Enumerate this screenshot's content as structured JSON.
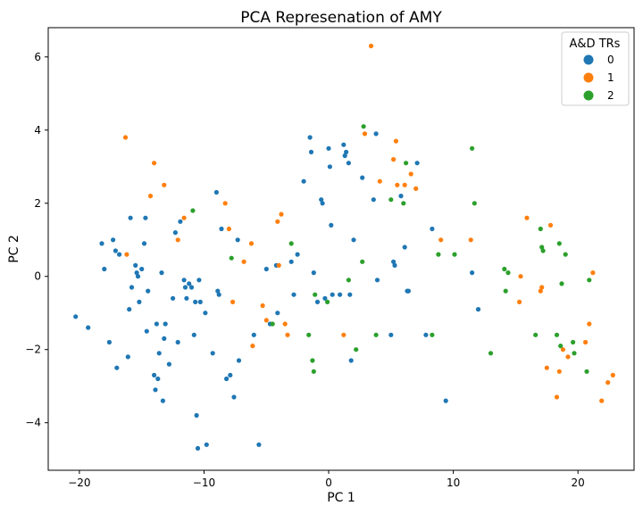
{
  "chart_data": {
    "type": "scatter",
    "title": "PCA Represenation of AMY",
    "xlabel": "PC 1",
    "ylabel": "PC 2",
    "xlim": [
      -22.5,
      24.5
    ],
    "ylim": [
      -5.3,
      6.8
    ],
    "xticks": [
      -20,
      -10,
      0,
      10,
      20
    ],
    "yticks": [
      -4,
      -2,
      0,
      2,
      4,
      6
    ],
    "grid": false,
    "legend": {
      "title": "A&D TRs",
      "placement": "top-right"
    },
    "series": [
      {
        "name": "0",
        "color": "#1f77b4",
        "points": [
          [
            -20.3,
            -1.1
          ],
          [
            -19.3,
            -1.4
          ],
          [
            -18.2,
            0.9
          ],
          [
            -18.0,
            0.2
          ],
          [
            -17.6,
            -1.8
          ],
          [
            -17.3,
            1.0
          ],
          [
            -17.1,
            0.7
          ],
          [
            -17.0,
            -2.5
          ],
          [
            -16.8,
            0.6
          ],
          [
            -16.1,
            -2.2
          ],
          [
            -16.0,
            -0.9
          ],
          [
            -15.9,
            1.6
          ],
          [
            -15.8,
            -0.3
          ],
          [
            -15.5,
            0.3
          ],
          [
            -15.4,
            0.1
          ],
          [
            -15.3,
            0.0
          ],
          [
            -15.2,
            -0.7
          ],
          [
            -15.0,
            0.2
          ],
          [
            -14.8,
            0.9
          ],
          [
            -14.7,
            1.6
          ],
          [
            -14.6,
            -1.5
          ],
          [
            -14.5,
            -0.4
          ],
          [
            -14.0,
            -2.7
          ],
          [
            -13.9,
            -3.1
          ],
          [
            -13.8,
            -1.3
          ],
          [
            -13.7,
            -2.8
          ],
          [
            -13.6,
            -2.1
          ],
          [
            -13.4,
            0.1
          ],
          [
            -13.3,
            -3.4
          ],
          [
            -13.2,
            -1.7
          ],
          [
            -13.1,
            -1.3
          ],
          [
            -12.8,
            -2.4
          ],
          [
            -12.5,
            -0.6
          ],
          [
            -12.3,
            1.2
          ],
          [
            -12.1,
            -1.8
          ],
          [
            -11.9,
            1.5
          ],
          [
            -11.6,
            -0.1
          ],
          [
            -11.5,
            -0.3
          ],
          [
            -11.4,
            -0.6
          ],
          [
            -11.2,
            -0.2
          ],
          [
            -11.0,
            -0.3
          ],
          [
            -10.8,
            -1.6
          ],
          [
            -10.7,
            -0.7
          ],
          [
            -10.6,
            -3.8
          ],
          [
            -10.5,
            -4.7
          ],
          [
            -10.4,
            -0.1
          ],
          [
            -10.3,
            -0.7
          ],
          [
            -9.9,
            -1.0
          ],
          [
            -9.8,
            -4.6
          ],
          [
            -9.3,
            -2.1
          ],
          [
            -9.0,
            2.3
          ],
          [
            -8.9,
            -0.4
          ],
          [
            -8.8,
            -0.5
          ],
          [
            -8.6,
            1.3
          ],
          [
            -8.2,
            -2.8
          ],
          [
            -7.9,
            -2.7
          ],
          [
            -7.6,
            -3.3
          ],
          [
            -7.3,
            1.0
          ],
          [
            -7.2,
            -2.3
          ],
          [
            -6.0,
            -1.6
          ],
          [
            -5.6,
            -4.6
          ],
          [
            -5.0,
            0.2
          ],
          [
            -4.7,
            -1.3
          ],
          [
            -4.2,
            0.3
          ],
          [
            -4.1,
            -1.0
          ],
          [
            -3.0,
            0.4
          ],
          [
            -2.8,
            -0.5
          ],
          [
            -2.5,
            0.6
          ],
          [
            -2.0,
            2.6
          ],
          [
            -1.5,
            3.8
          ],
          [
            -1.4,
            3.4
          ],
          [
            -1.2,
            0.1
          ],
          [
            -0.9,
            -0.7
          ],
          [
            -0.6,
            2.1
          ],
          [
            -0.5,
            2.0
          ],
          [
            -0.3,
            -0.6
          ],
          [
            0.0,
            3.5
          ],
          [
            0.1,
            3.0
          ],
          [
            0.2,
            1.4
          ],
          [
            0.3,
            -0.5
          ],
          [
            0.9,
            -0.5
          ],
          [
            1.2,
            3.6
          ],
          [
            1.3,
            3.3
          ],
          [
            1.4,
            3.4
          ],
          [
            1.6,
            3.1
          ],
          [
            1.7,
            -0.5
          ],
          [
            1.8,
            -2.3
          ],
          [
            2.0,
            1.0
          ],
          [
            2.7,
            2.7
          ],
          [
            3.6,
            2.1
          ],
          [
            3.8,
            3.9
          ],
          [
            3.9,
            -0.1
          ],
          [
            5.0,
            -1.6
          ],
          [
            5.2,
            0.4
          ],
          [
            5.3,
            0.3
          ],
          [
            5.8,
            2.2
          ],
          [
            6.1,
            0.8
          ],
          [
            6.3,
            -0.4
          ],
          [
            6.4,
            -0.4
          ],
          [
            7.1,
            3.1
          ],
          [
            7.8,
            -1.6
          ],
          [
            8.3,
            1.3
          ],
          [
            9.4,
            -3.4
          ],
          [
            11.5,
            0.1
          ],
          [
            12.0,
            -0.9
          ]
        ]
      },
      {
        "name": "1",
        "color": "#ff7f0e",
        "points": [
          [
            -16.3,
            3.8
          ],
          [
            -16.2,
            0.6
          ],
          [
            -14.3,
            2.2
          ],
          [
            -14.0,
            3.1
          ],
          [
            -13.2,
            2.5
          ],
          [
            -12.1,
            1.0
          ],
          [
            -11.6,
            1.6
          ],
          [
            -8.3,
            2.0
          ],
          [
            -8.0,
            1.3
          ],
          [
            -7.7,
            -0.7
          ],
          [
            -6.8,
            0.4
          ],
          [
            -6.2,
            0.9
          ],
          [
            -6.1,
            -1.9
          ],
          [
            -5.3,
            -0.8
          ],
          [
            -5.0,
            -1.2
          ],
          [
            -4.1,
            1.5
          ],
          [
            -4.0,
            0.3
          ],
          [
            -3.8,
            1.7
          ],
          [
            -3.5,
            -1.3
          ],
          [
            -3.3,
            -1.6
          ],
          [
            1.2,
            -1.6
          ],
          [
            2.9,
            3.9
          ],
          [
            3.4,
            6.3
          ],
          [
            4.1,
            2.6
          ],
          [
            5.2,
            3.2
          ],
          [
            5.4,
            3.7
          ],
          [
            5.5,
            2.5
          ],
          [
            6.1,
            2.5
          ],
          [
            6.6,
            2.8
          ],
          [
            7.0,
            2.4
          ],
          [
            9.0,
            1.0
          ],
          [
            11.4,
            1.0
          ],
          [
            15.3,
            -0.7
          ],
          [
            15.4,
            0.0
          ],
          [
            15.9,
            1.6
          ],
          [
            17.0,
            -0.4
          ],
          [
            17.1,
            -0.3
          ],
          [
            17.5,
            -2.5
          ],
          [
            17.8,
            1.4
          ],
          [
            18.3,
            -3.3
          ],
          [
            18.5,
            -2.6
          ],
          [
            18.8,
            -2.0
          ],
          [
            19.2,
            -2.2
          ],
          [
            20.6,
            -1.8
          ],
          [
            20.9,
            -1.3
          ],
          [
            21.2,
            0.1
          ],
          [
            21.9,
            -3.4
          ],
          [
            22.4,
            -2.9
          ],
          [
            22.8,
            -2.7
          ]
        ]
      },
      {
        "name": "2",
        "color": "#2ca02c",
        "points": [
          [
            -10.9,
            1.8
          ],
          [
            -7.8,
            0.5
          ],
          [
            -4.5,
            -1.3
          ],
          [
            -3.0,
            0.9
          ],
          [
            -1.6,
            -1.6
          ],
          [
            -1.3,
            -2.3
          ],
          [
            -1.2,
            -2.6
          ],
          [
            -1.1,
            -0.5
          ],
          [
            -0.1,
            -0.7
          ],
          [
            1.6,
            -0.1
          ],
          [
            2.2,
            -2.0
          ],
          [
            2.7,
            0.4
          ],
          [
            2.8,
            4.1
          ],
          [
            3.8,
            -1.6
          ],
          [
            5.0,
            2.1
          ],
          [
            6.0,
            2.0
          ],
          [
            6.2,
            3.1
          ],
          [
            8.3,
            -1.6
          ],
          [
            8.8,
            0.6
          ],
          [
            10.1,
            0.6
          ],
          [
            11.5,
            3.5
          ],
          [
            11.7,
            2.0
          ],
          [
            13.0,
            -2.1
          ],
          [
            14.1,
            0.2
          ],
          [
            14.2,
            -0.4
          ],
          [
            14.4,
            0.1
          ],
          [
            16.6,
            -1.6
          ],
          [
            17.0,
            1.3
          ],
          [
            17.1,
            0.8
          ],
          [
            17.2,
            0.7
          ],
          [
            18.3,
            -1.6
          ],
          [
            18.5,
            0.9
          ],
          [
            18.6,
            -1.9
          ],
          [
            18.7,
            -0.2
          ],
          [
            19.0,
            0.6
          ],
          [
            19.6,
            -1.8
          ],
          [
            19.7,
            -2.1
          ],
          [
            20.7,
            -2.6
          ],
          [
            20.9,
            -0.1
          ]
        ]
      }
    ]
  }
}
